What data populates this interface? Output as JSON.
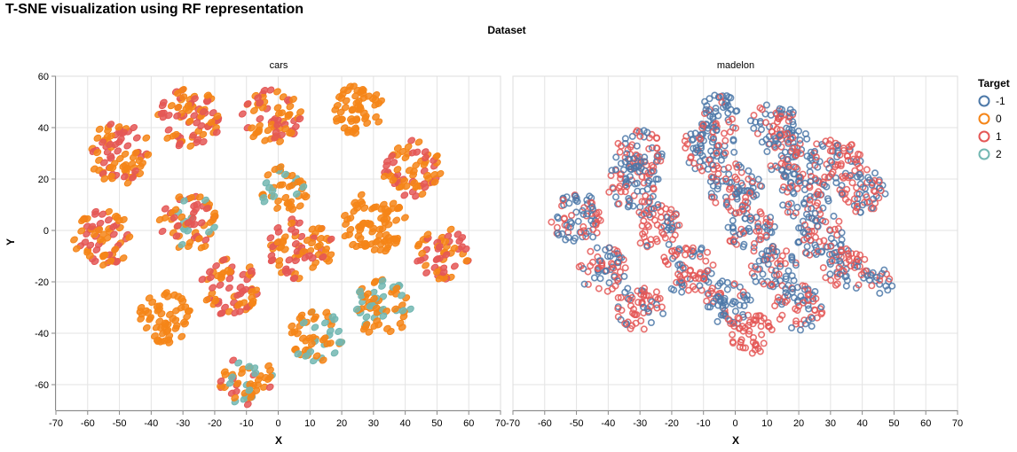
{
  "title": "T-SNE visualization using RF representation",
  "column_header": "Dataset",
  "legend": {
    "title": "Target",
    "items": [
      {
        "label": "-1",
        "color": "#4c78a8"
      },
      {
        "label": "0",
        "color": "#f58518"
      },
      {
        "label": "1",
        "color": "#e45756"
      },
      {
        "label": "2",
        "color": "#72b7b2"
      }
    ]
  },
  "chart_data": {
    "type": "scatter",
    "title": "T-SNE visualization using RF representation",
    "facet_field": "Dataset",
    "color_field": "Target",
    "xlabel": "X",
    "ylabel": "Y",
    "xlim": [
      -70,
      70
    ],
    "ylim": [
      -70,
      60
    ],
    "x_ticks": [
      -70,
      -60,
      -50,
      -40,
      -30,
      -20,
      -10,
      0,
      10,
      20,
      30,
      40,
      50,
      60,
      70
    ],
    "y_ticks": [
      -60,
      -40,
      -20,
      0,
      20,
      40,
      60
    ],
    "grid": true,
    "legend_position": "right",
    "facets": [
      {
        "name": "cars",
        "marker": "filled",
        "clusters": [
          {
            "x": -50,
            "y": 30,
            "r": 12,
            "mix": {
              "0": 0.6,
              "1": 0.4
            }
          },
          {
            "x": -28,
            "y": 44,
            "r": 12,
            "mix": {
              "0": 0.5,
              "1": 0.5
            }
          },
          {
            "x": -2,
            "y": 44,
            "r": 11,
            "mix": {
              "0": 0.6,
              "1": 0.4
            }
          },
          {
            "x": 25,
            "y": 47,
            "r": 10,
            "mix": {
              "0": 1.0
            }
          },
          {
            "x": 42,
            "y": 24,
            "r": 11,
            "mix": {
              "0": 0.6,
              "1": 0.4
            }
          },
          {
            "x": 2,
            "y": 16,
            "r": 9,
            "mix": {
              "0": 0.7,
              "2": 0.3
            }
          },
          {
            "x": -28,
            "y": 3,
            "r": 11,
            "mix": {
              "0": 0.45,
              "1": 0.4,
              "2": 0.15
            }
          },
          {
            "x": -55,
            "y": -3,
            "r": 11,
            "mix": {
              "0": 0.5,
              "1": 0.5
            }
          },
          {
            "x": 7,
            "y": -7,
            "r": 12,
            "mix": {
              "0": 0.5,
              "1": 0.5
            }
          },
          {
            "x": 30,
            "y": 3,
            "r": 12,
            "mix": {
              "0": 1.0
            }
          },
          {
            "x": 52,
            "y": -9,
            "r": 10,
            "mix": {
              "0": 0.6,
              "1": 0.4
            }
          },
          {
            "x": -36,
            "y": -34,
            "r": 10,
            "mix": {
              "0": 1.0
            }
          },
          {
            "x": -15,
            "y": -22,
            "r": 11,
            "mix": {
              "0": 0.5,
              "1": 0.5
            }
          },
          {
            "x": 12,
            "y": -41,
            "r": 10,
            "mix": {
              "0": 0.6,
              "2": 0.4
            }
          },
          {
            "x": 33,
            "y": -30,
            "r": 11,
            "mix": {
              "0": 0.6,
              "2": 0.4
            }
          },
          {
            "x": -10,
            "y": -58,
            "r": 10,
            "mix": {
              "0": 0.45,
              "1": 0.35,
              "2": 0.2
            }
          }
        ]
      },
      {
        "name": "madelon",
        "marker": "hollow",
        "clusters": [
          {
            "x": -5,
            "y": 45,
            "r": 8,
            "mix": {
              "-1": 0.8,
              "1": 0.2
            }
          },
          {
            "x": 12,
            "y": 41,
            "r": 9,
            "mix": {
              "-1": 0.5,
              "1": 0.5
            }
          },
          {
            "x": -30,
            "y": 30,
            "r": 9,
            "mix": {
              "-1": 0.3,
              "1": 0.7
            }
          },
          {
            "x": -8,
            "y": 32,
            "r": 10,
            "mix": {
              "-1": 0.6,
              "1": 0.4
            }
          },
          {
            "x": 18,
            "y": 30,
            "r": 10,
            "mix": {
              "-1": 0.6,
              "1": 0.4
            }
          },
          {
            "x": 32,
            "y": 27,
            "r": 9,
            "mix": {
              "-1": 0.3,
              "1": 0.7
            }
          },
          {
            "x": -32,
            "y": 18,
            "r": 10,
            "mix": {
              "-1": 0.7,
              "1": 0.3
            }
          },
          {
            "x": 0,
            "y": 17,
            "r": 10,
            "mix": {
              "-1": 0.5,
              "1": 0.5
            }
          },
          {
            "x": 22,
            "y": 13,
            "r": 9,
            "mix": {
              "-1": 0.5,
              "1": 0.5
            }
          },
          {
            "x": 40,
            "y": 15,
            "r": 9,
            "mix": {
              "-1": 0.4,
              "1": 0.6
            }
          },
          {
            "x": -50,
            "y": 5,
            "r": 10,
            "mix": {
              "-1": 0.6,
              "1": 0.4
            }
          },
          {
            "x": -25,
            "y": 2,
            "r": 9,
            "mix": {
              "-1": 0.3,
              "1": 0.7
            }
          },
          {
            "x": 5,
            "y": 0,
            "r": 9,
            "mix": {
              "-1": 0.6,
              "1": 0.4
            }
          },
          {
            "x": 27,
            "y": -2,
            "r": 9,
            "mix": {
              "-1": 0.6,
              "1": 0.4
            }
          },
          {
            "x": -42,
            "y": -15,
            "r": 9,
            "mix": {
              "-1": 0.4,
              "1": 0.6
            }
          },
          {
            "x": -15,
            "y": -15,
            "r": 10,
            "mix": {
              "-1": 0.4,
              "1": 0.6
            }
          },
          {
            "x": 12,
            "y": -15,
            "r": 9,
            "mix": {
              "-1": 0.6,
              "1": 0.4
            }
          },
          {
            "x": 35,
            "y": -15,
            "r": 9,
            "mix": {
              "-1": 0.5,
              "1": 0.5
            }
          },
          {
            "x": 46,
            "y": -20,
            "r": 5,
            "mix": {
              "-1": 0.8,
              "1": 0.2
            }
          },
          {
            "x": -30,
            "y": -30,
            "r": 9,
            "mix": {
              "-1": 0.3,
              "1": 0.7
            }
          },
          {
            "x": -2,
            "y": -28,
            "r": 9,
            "mix": {
              "-1": 0.7,
              "1": 0.3
            }
          },
          {
            "x": 20,
            "y": -30,
            "r": 9,
            "mix": {
              "-1": 0.5,
              "1": 0.5
            }
          },
          {
            "x": 5,
            "y": -40,
            "r": 8,
            "mix": {
              "1": 1.0
            }
          }
        ]
      }
    ]
  }
}
